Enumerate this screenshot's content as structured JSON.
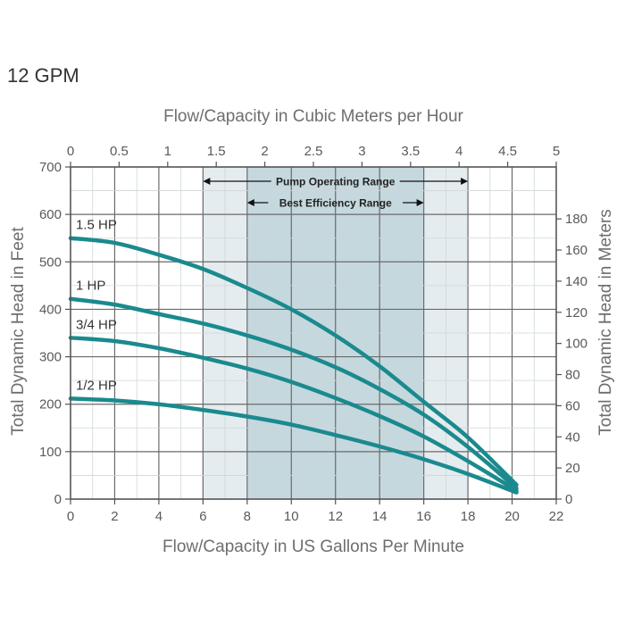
{
  "page_title": "12 GPM",
  "colors": {
    "curve": "#1a8a8e",
    "pump_range_band": "#e5ecef",
    "efficiency_band": "#c5d8de",
    "grid": "#6a6a6a",
    "text": "#5a5a5a"
  },
  "chart_data": {
    "type": "line",
    "title": "",
    "xlabel": "Flow/Capacity in US Gallons Per Minute",
    "x2label": "Flow/Capacity in Cubic Meters per Hour",
    "ylabel": "Total Dynamic Head in Feet",
    "y2label": "Total Dynamic Head in Meters",
    "xlim": [
      0,
      22
    ],
    "ylim": [
      0,
      700
    ],
    "x2lim": [
      0,
      5
    ],
    "y2lim": [
      0,
      190
    ],
    "x_ticks": [
      0,
      2,
      4,
      6,
      8,
      10,
      12,
      14,
      16,
      18,
      20,
      22
    ],
    "y_ticks": [
      0,
      100,
      200,
      300,
      400,
      500,
      600,
      700
    ],
    "x2_ticks": [
      "0",
      "0.5",
      "1",
      "1.5",
      "2",
      "2.5",
      "3",
      "3.5",
      "4",
      "4.5",
      "5"
    ],
    "y2_ticks": [
      "0",
      "20",
      "40",
      "60",
      "80",
      "100",
      "120",
      "140",
      "160",
      "180"
    ],
    "grid": true,
    "ranges": [
      {
        "label": "Pump Operating Range",
        "x_start": 6,
        "x_end": 18
      },
      {
        "label": "Best Efficiency Range",
        "x_start": 8,
        "x_end": 16
      }
    ],
    "series": [
      {
        "name": "1.5 HP",
        "x": [
          0,
          2,
          4,
          6,
          8,
          10,
          12,
          14,
          16,
          18,
          20.2
        ],
        "y": [
          550,
          540,
          515,
          485,
          445,
          400,
          345,
          280,
          205,
          130,
          30
        ]
      },
      {
        "name": "1 HP",
        "x": [
          0,
          2,
          4,
          6,
          8,
          10,
          12,
          14,
          16,
          18,
          20.2
        ],
        "y": [
          422,
          410,
          390,
          370,
          345,
          315,
          278,
          232,
          178,
          110,
          23
        ]
      },
      {
        "name": "3/4 HP",
        "x": [
          0,
          2,
          4,
          6,
          8,
          10,
          12,
          14,
          16,
          18,
          20.2
        ],
        "y": [
          340,
          333,
          318,
          298,
          275,
          247,
          213,
          175,
          132,
          80,
          18
        ]
      },
      {
        "name": "1/2 HP",
        "x": [
          0,
          2,
          4,
          6,
          8,
          10,
          12,
          14,
          16,
          18,
          20.2
        ],
        "y": [
          212,
          208,
          200,
          188,
          174,
          157,
          135,
          111,
          84,
          53,
          14
        ]
      }
    ]
  }
}
